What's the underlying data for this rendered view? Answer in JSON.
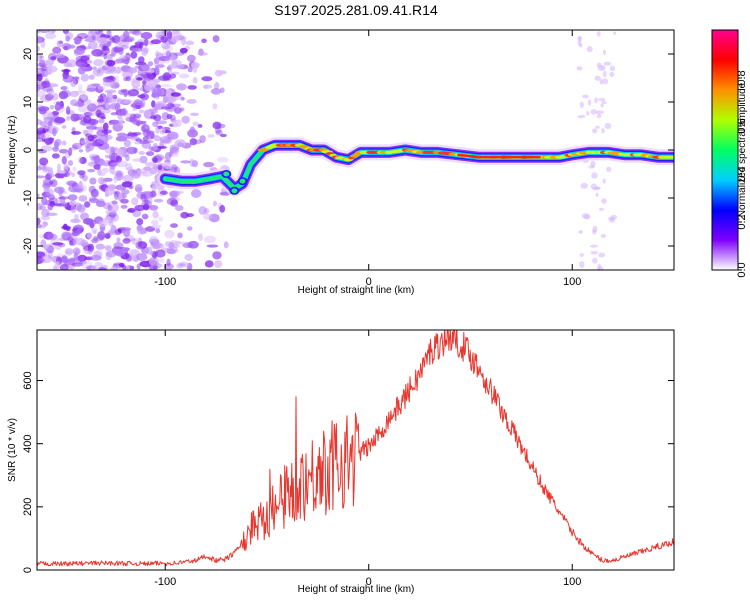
{
  "figure_title": "S197.2025.281.09.41.R14",
  "chart_data": [
    {
      "type": "heatmap",
      "title": "S197.2025.281.09.41.R14",
      "xlabel": "Height of straight line (km)",
      "ylabel": "Frequency (Hz)",
      "xlim": [
        -163,
        150
      ],
      "ylim": [
        -25,
        25
      ],
      "xticks": [
        -100,
        0,
        100
      ],
      "yticks": [
        -20,
        -10,
        0,
        10,
        20
      ],
      "colorbar": {
        "label": "Normalized spectral amplitude",
        "range": [
          0,
          1
        ],
        "ticks": [
          "0.0",
          "0.2",
          "0.4",
          "0.6",
          "0.8"
        ],
        "colors": [
          "#ffffff",
          "#7f00ff",
          "#0000ff",
          "#00d0ff",
          "#00ff60",
          "#b0ff00",
          "#ff9000",
          "#ff0000",
          "#ff0090"
        ]
      },
      "ridge": {
        "x": [
          -100,
          -92,
          -85,
          -78,
          -72,
          -66,
          -62,
          -58,
          -52,
          -46,
          -40,
          -34,
          -28,
          -22,
          -16,
          -10,
          -4,
          2,
          10,
          18,
          26,
          34,
          44,
          54,
          64,
          74,
          84,
          94,
          100,
          108,
          118,
          126,
          134,
          142,
          150
        ],
        "freq": [
          -6,
          -6.5,
          -6.5,
          -6,
          -5.5,
          -8,
          -7,
          -3,
          0,
          1,
          1,
          1,
          0,
          0,
          -1.5,
          -2,
          -0.5,
          -0.5,
          -0.5,
          0,
          -0.5,
          -0.5,
          -1,
          -1.5,
          -1.5,
          -1.5,
          -1.5,
          -1.5,
          -1,
          -0.5,
          -0.5,
          -1,
          -1,
          -1.5,
          -1.5
        ]
      }
    },
    {
      "type": "line",
      "xlabel": "Height of straight line (km)",
      "ylabel": "SNR (10 * v/v)",
      "xlim": [
        -163,
        150
      ],
      "ylim": [
        0,
        760
      ],
      "xticks": [
        -100,
        0,
        100
      ],
      "yticks": [
        0,
        200,
        400,
        600
      ],
      "series": [
        {
          "name": "SNR",
          "color": "#e8362e",
          "x": [
            -163,
            -150,
            -130,
            -110,
            -95,
            -85,
            -80,
            -75,
            -70,
            -65,
            -60,
            -55,
            -50,
            -45,
            -40,
            -35,
            -30,
            -25,
            -20,
            -15,
            -10,
            -5,
            0,
            5,
            10,
            15,
            20,
            25,
            30,
            35,
            40,
            45,
            50,
            55,
            60,
            65,
            70,
            75,
            80,
            85,
            90,
            95,
            100,
            105,
            110,
            115,
            120,
            125,
            130,
            135,
            140,
            145,
            150
          ],
          "y": [
            20,
            20,
            22,
            20,
            22,
            30,
            45,
            30,
            35,
            60,
            110,
            160,
            180,
            200,
            240,
            270,
            290,
            310,
            320,
            340,
            350,
            370,
            390,
            430,
            480,
            520,
            570,
            620,
            690,
            720,
            740,
            720,
            680,
            630,
            570,
            510,
            450,
            390,
            330,
            270,
            220,
            170,
            120,
            80,
            50,
            30,
            30,
            40,
            50,
            60,
            70,
            80,
            90
          ]
        }
      ]
    }
  ]
}
